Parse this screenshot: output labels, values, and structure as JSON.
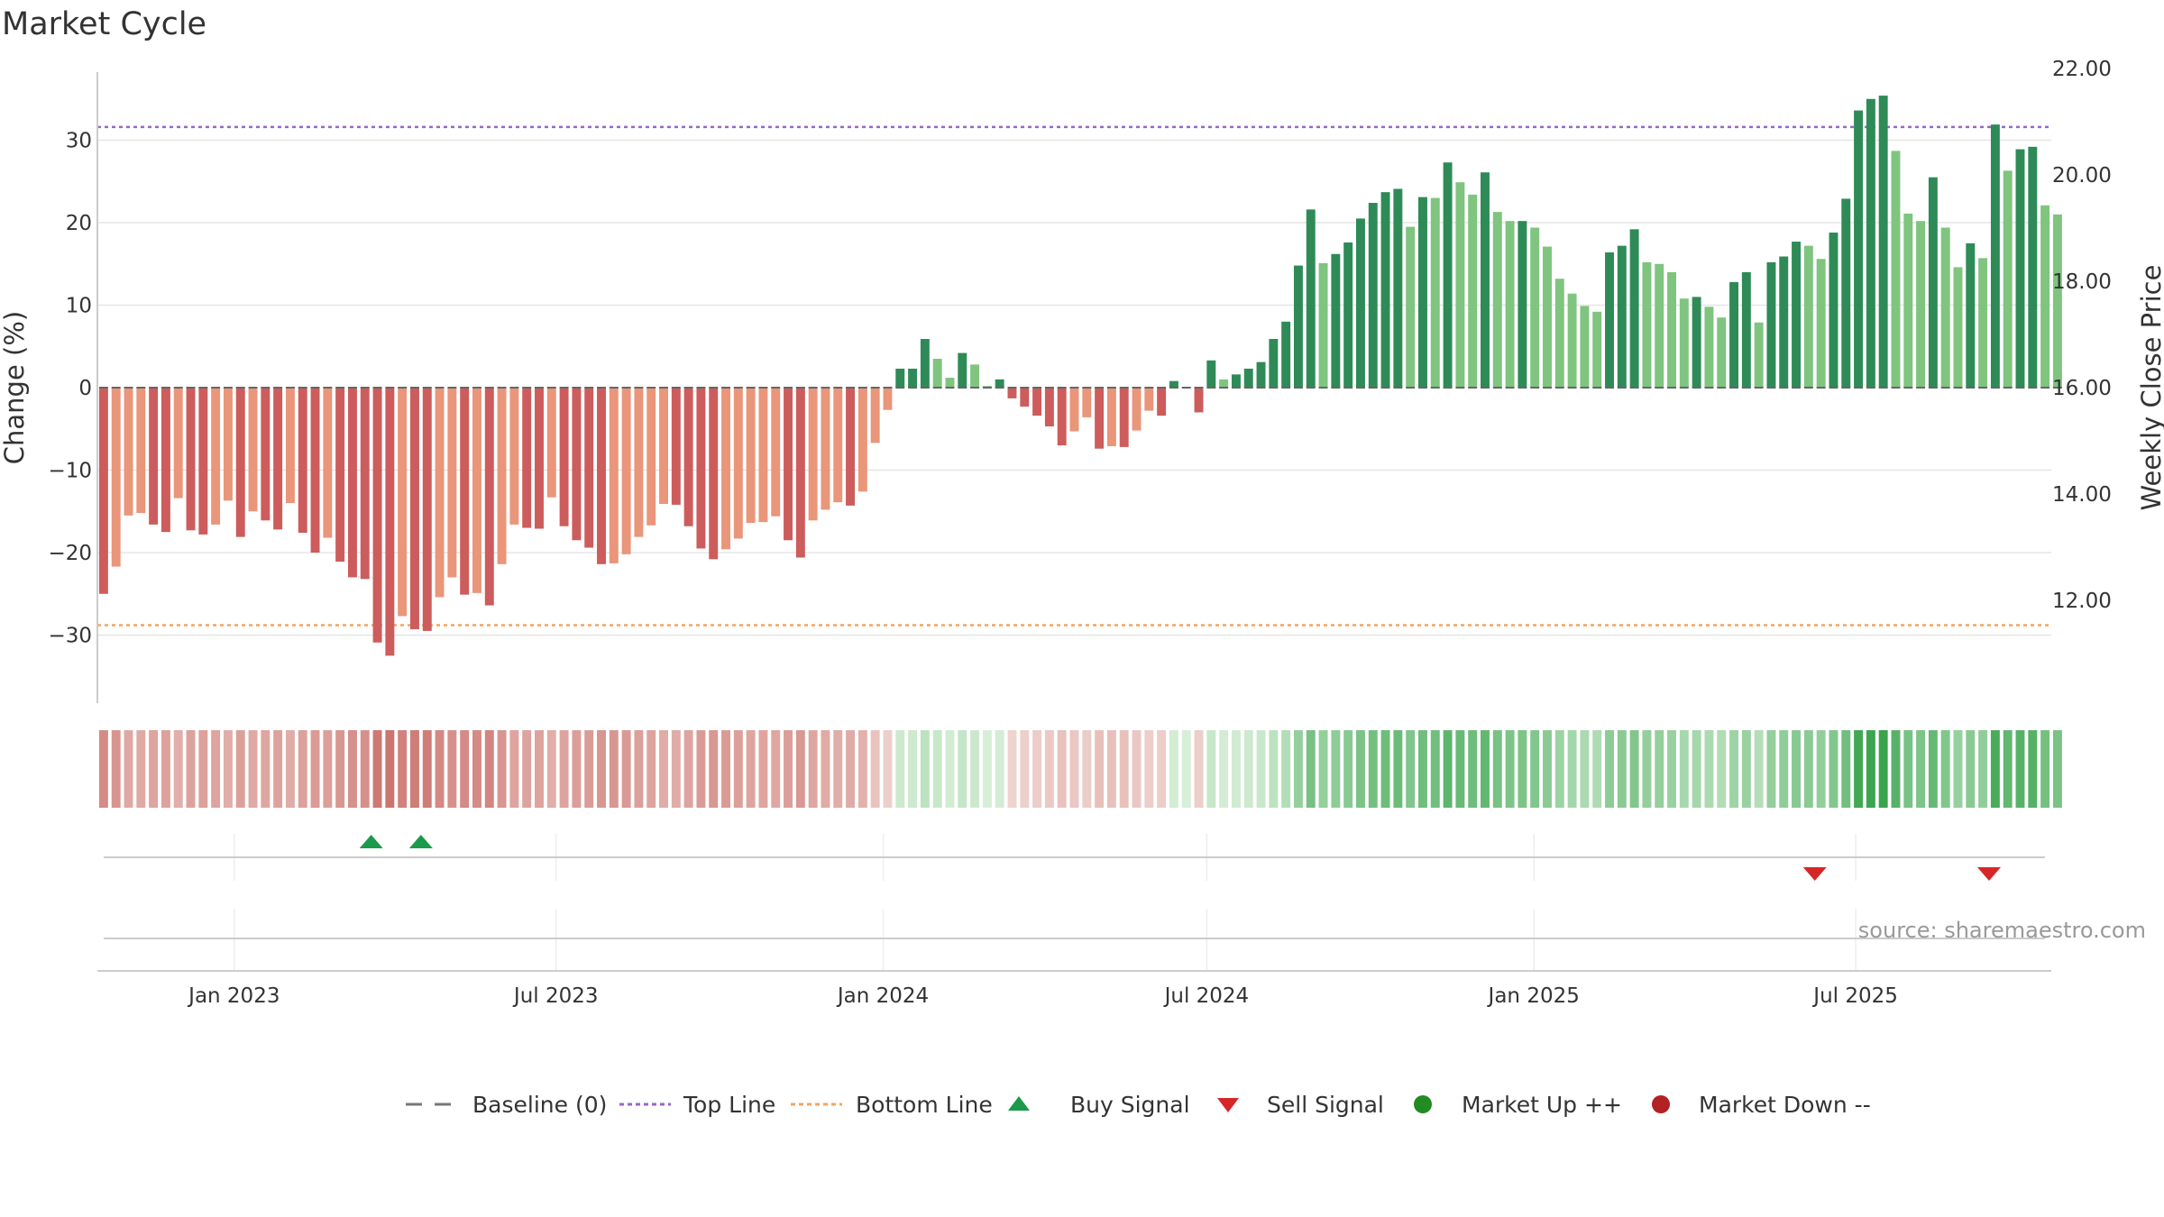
{
  "title": "Market Cycle",
  "source": "source: sharemaestro.com",
  "colors": {
    "up_strong": "#2e8b57",
    "up_light": "#7fc47f",
    "down_strong": "#cd5c5c",
    "down_light": "#e9967a",
    "top_line": "#9966cc",
    "bottom_line": "#f4a460",
    "buy": "#1a9a4a",
    "sell": "#d62728",
    "grid": "#e6e6e6"
  },
  "chart_data": {
    "type": "bar",
    "title": "Market Cycle",
    "ylabel": "Change (%)",
    "y2label": "Weekly Close Price",
    "ylim": [
      -38,
      38
    ],
    "y_ticks": [
      30,
      20,
      10,
      0,
      -10,
      -20,
      -30
    ],
    "y_tick_labels": [
      "30",
      "20",
      "10",
      "0",
      "−10",
      "−20",
      "−30"
    ],
    "y2lim": [
      10.08,
      22.0
    ],
    "y2_ticks": [
      22,
      20,
      18,
      16,
      14,
      12
    ],
    "y2_tick_labels": [
      "22.00",
      "20.00",
      "18.00",
      "16.00",
      "14.00",
      "12.00"
    ],
    "top_line": 31.6,
    "bottom_line": -28.8,
    "x_start": "2022-10-16",
    "x_end": "2025-10-19",
    "x_ticks": [
      "2023-01-01",
      "2023-07-01",
      "2024-01-01",
      "2024-07-01",
      "2025-01-01",
      "2025-07-01"
    ],
    "x_tick_labels": [
      "Jan 2023",
      "Jul 2023",
      "Jan 2024",
      "Jul 2024",
      "Jan 2025",
      "Jul 2025"
    ],
    "week_start": "2022-10-16",
    "values": [
      -25,
      -21.7,
      -15.5,
      -15.2,
      -16.6,
      -17.5,
      -13.4,
      -17.3,
      -17.8,
      -16.6,
      -13.7,
      -18.1,
      -15,
      -16.1,
      -17.2,
      -14,
      -17.6,
      -20,
      -18.2,
      -21.1,
      -23,
      -23.2,
      -30.9,
      -32.5,
      -27.7,
      -29.3,
      -29.5,
      -25.4,
      -23,
      -25.1,
      -24.9,
      -26.4,
      -21.4,
      -16.6,
      -17,
      -17.1,
      -13.3,
      -16.8,
      -18.5,
      -19.4,
      -21.4,
      -21.3,
      -20.2,
      -18.1,
      -16.7,
      -14.1,
      -14.2,
      -16.8,
      -19.5,
      -20.8,
      -19.6,
      -18.3,
      -16.4,
      -16.3,
      -15.6,
      -18.5,
      -20.6,
      -16.1,
      -14.8,
      -13.9,
      -14.3,
      -12.6,
      -6.7,
      -2.7,
      2.3,
      2.3,
      5.9,
      3.5,
      1.2,
      4.2,
      2.8,
      0.2,
      1,
      -1.3,
      -2.3,
      -3.4,
      -4.7,
      -7,
      -5.3,
      -3.6,
      -7.4,
      -7.1,
      -7.2,
      -5.2,
      -2.8,
      -3.4,
      0.8,
      0,
      -3,
      3.3,
      1,
      1.6,
      2.3,
      3.1,
      5.9,
      8,
      14.8,
      21.6,
      15.1,
      16.2,
      17.6,
      20.5,
      22.4,
      23.7,
      24.1,
      19.5,
      23.1,
      23,
      27.3,
      24.9,
      23.4,
      26.1,
      21.3,
      20.2,
      20.2,
      19.4,
      17.1,
      13.2,
      11.4,
      9.9,
      9.2,
      16.4,
      17.2,
      19.2,
      15.2,
      15,
      14,
      10.8,
      11,
      9.8,
      8.5,
      12.8,
      14,
      7.9,
      15.2,
      15.9,
      17.7,
      17.2,
      15.6,
      18.8,
      22.9,
      33.6,
      35,
      35.4,
      28.7,
      21.1,
      20.2,
      25.5,
      19.4,
      14.6,
      17.5,
      15.7,
      31.9,
      26.3,
      28.9,
      29.2,
      22.1,
      21
    ],
    "buy_signals": [
      {
        "date": "2023-03-19",
        "label": "Buy Signal"
      },
      {
        "date": "2023-04-16",
        "label": "Buy Signal"
      }
    ],
    "sell_signals": [
      {
        "date": "2025-06-08",
        "label": "Sell Signal"
      },
      {
        "date": "2025-09-14",
        "label": "Sell Signal"
      }
    ],
    "legend": {
      "position": "bottom-center",
      "entries": [
        {
          "key": "baseline",
          "label": "Baseline (0)"
        },
        {
          "key": "top",
          "label": "Top Line"
        },
        {
          "key": "bottom",
          "label": "Bottom Line"
        },
        {
          "key": "buy",
          "label": "Buy Signal"
        },
        {
          "key": "sell",
          "label": "Sell Signal"
        },
        {
          "key": "up",
          "label": "Market Up ++"
        },
        {
          "key": "down",
          "label": "Market Down --"
        }
      ]
    },
    "legend_colors": {
      "baseline": "#777777",
      "top": "#9966cc",
      "bottom": "#f4a460",
      "buy": "#1a9a4a",
      "sell": "#d62728",
      "up": "#228b22",
      "down": "#b22222"
    },
    "grid": true
  }
}
